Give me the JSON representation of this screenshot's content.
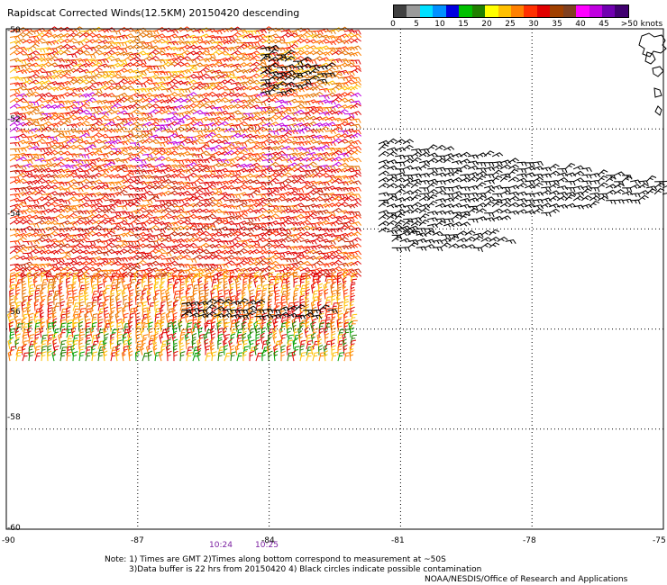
{
  "title": "Rapidscat Corrected Winds(12.5KM) 20150420 descending",
  "legend": {
    "colors": [
      "#404040",
      "#9a9a9a",
      "#00e0ff",
      "#0090ff",
      "#0000e0",
      "#00c000",
      "#208000",
      "#ffff00",
      "#ffc000",
      "#ff8000",
      "#ff3000",
      "#e00000",
      "#a04000",
      "#804020",
      "#ff00ff",
      "#c000e0",
      "#7000b0",
      "#400070"
    ],
    "labels": [
      "0",
      "5",
      "10",
      "15",
      "20",
      "25",
      "30",
      "35",
      "40",
      "45",
      ">50 knots"
    ]
  },
  "axes": {
    "lon_labels": [
      "-90",
      "-87",
      "-84",
      "-81",
      "-78",
      "-75"
    ],
    "lat_labels": [
      "-50",
      "-52",
      "-54",
      "-56",
      "-58",
      "-60"
    ]
  },
  "times": [
    "10:24",
    "10:25"
  ],
  "notes": {
    "line1": "Note: 1) Times are GMT 2)Times along bottom correspond to measurement at ~50S",
    "line2": "3)Data buffer is 22 hrs from 20150420 4) Black circles indicate possible contamination",
    "credit": "NOAA/NESDIS/Office of Research and Applications"
  },
  "map_data": {
    "lon_range": [
      -90,
      -75
    ],
    "lat_range": [
      -60,
      -50
    ],
    "swath_lon_range": [
      -90,
      -82
    ],
    "swath_lat_range": [
      -50,
      -56.7
    ],
    "bands": [
      {
        "lat_from": -50,
        "lat_to": -51.3,
        "colors": [
          "#e07000",
          "#ff8000",
          "#ff3000",
          "#e00000",
          "#ffc000"
        ]
      },
      {
        "lat_from": -51.3,
        "lat_to": -52.8,
        "colors": [
          "#ff8000",
          "#e00000",
          "#ff3000",
          "#c000e0",
          "#e07000"
        ]
      },
      {
        "lat_from": -52.8,
        "lat_to": -55.0,
        "colors": [
          "#e00000",
          "#ff3000",
          "#e00000",
          "#c02000",
          "#ff8000"
        ]
      },
      {
        "lat_from": -55.0,
        "lat_to": -56.0,
        "colors": [
          "#ffc000",
          "#ff8000",
          "#ff3000",
          "#e07000",
          "#e00000"
        ]
      },
      {
        "lat_from": -56.0,
        "lat_to": -56.7,
        "colors": [
          "#208000",
          "#ff8000",
          "#ffc000",
          "#e00000",
          "#00a000"
        ]
      }
    ],
    "contaminated": [
      {
        "lon_from": -81.5,
        "lon_to": -74.9,
        "lat_from": -52.3,
        "lat_to": -54.1
      },
      {
        "lon_from": -81.2,
        "lon_to": -78.6,
        "lat_from": -54.0,
        "lat_to": -54.5
      },
      {
        "lon_from": -86.0,
        "lon_to": -82.6,
        "lat_from": -55.5,
        "lat_to": -55.8
      },
      {
        "lon_from": -84.2,
        "lon_to": -82.7,
        "lat_from": -50.4,
        "lat_to": -51.4
      }
    ]
  }
}
